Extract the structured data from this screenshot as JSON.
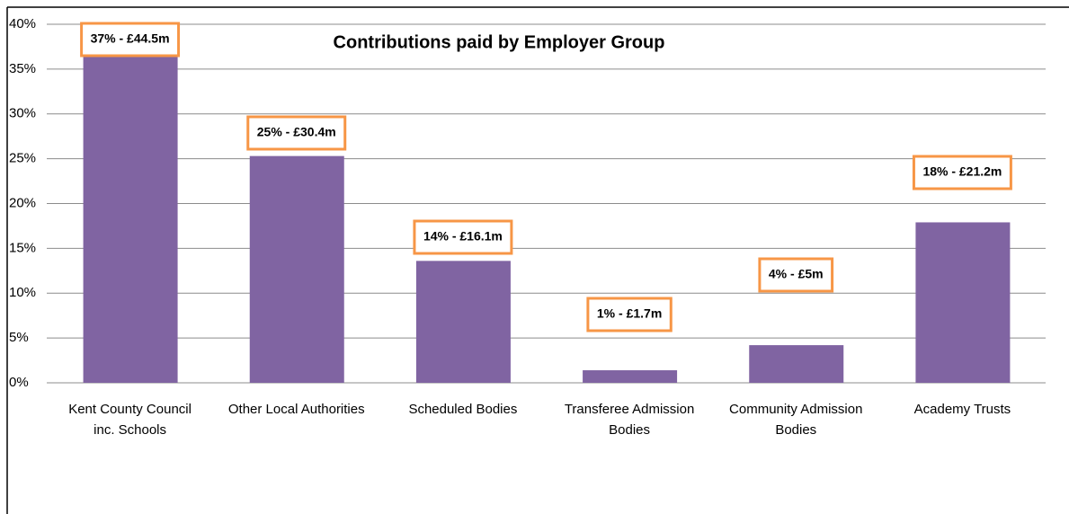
{
  "chart_data": {
    "type": "bar",
    "title": "Contributions paid by Employer Group",
    "categories": [
      "Kent County Council inc. Schools",
      "Other Local Authorities",
      "Scheduled Bodies",
      "Transferee Admission Bodies",
      "Community Admission Bodies",
      "Academy Trusts"
    ],
    "values": [
      37,
      25.3,
      13.6,
      1.4,
      4.2,
      17.9
    ],
    "value_labels": [
      "37% - £44.5m",
      "25% - £30.4m",
      "14% - £16.1m",
      "1% - £1.7m",
      "4% - £5m",
      "18% - £21.2m"
    ],
    "color": "#8064a2",
    "ylim": [
      0,
      40
    ],
    "yticks": [
      {
        "value": 0,
        "label": "0%"
      },
      {
        "value": 5,
        "label": "5%"
      },
      {
        "value": 10,
        "label": "10%"
      },
      {
        "value": 15,
        "label": "15%"
      },
      {
        "value": 20,
        "label": "20%"
      },
      {
        "value": 25,
        "label": "25%"
      },
      {
        "value": 30,
        "label": "30%"
      },
      {
        "value": 35,
        "label": "35%"
      },
      {
        "value": 40,
        "label": "40%"
      }
    ],
    "grid": true
  }
}
